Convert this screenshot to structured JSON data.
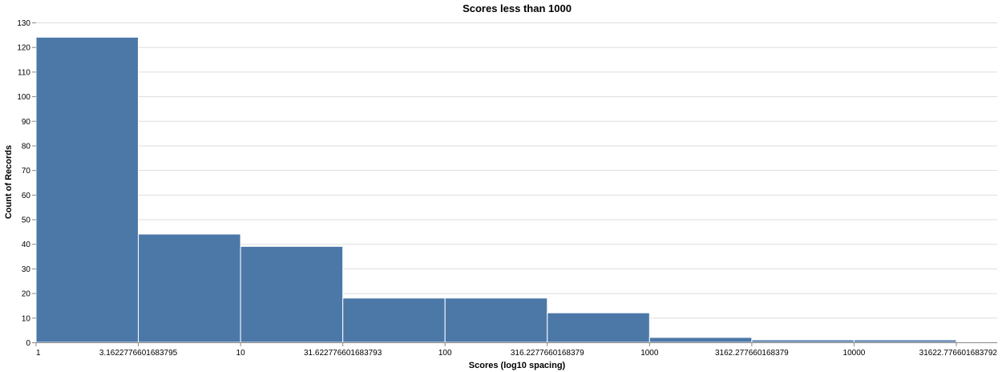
{
  "chart_data": {
    "type": "bar",
    "title": "Scores less than 1000",
    "xlabel": "Scores (log10 spacing)",
    "ylabel": "Count of Records",
    "x_scale": "log10",
    "xlim": [
      1,
      50118.72336272725
    ],
    "ylim": [
      0,
      130
    ],
    "y_ticks": [
      0,
      10,
      20,
      30,
      40,
      50,
      60,
      70,
      80,
      90,
      100,
      110,
      120,
      130
    ],
    "x_ticks": [
      {
        "value": 1,
        "label": "1"
      },
      {
        "value": 3.1622776601683795,
        "label": "3.1622776601683795"
      },
      {
        "value": 10,
        "label": "10"
      },
      {
        "value": 31.622776601683793,
        "label": "31.622776601683793"
      },
      {
        "value": 100,
        "label": "100"
      },
      {
        "value": 316.2277660168379,
        "label": "316.2277660168379"
      },
      {
        "value": 1000,
        "label": "1000"
      },
      {
        "value": 3162.277660168379,
        "label": "3162.277660168379"
      },
      {
        "value": 10000,
        "label": "10000"
      },
      {
        "value": 31622.776601683792,
        "label": "31622.776601683792"
      }
    ],
    "bins": [
      {
        "x0": 1,
        "x1": 3.1622776601683795,
        "count": 124
      },
      {
        "x0": 3.1622776601683795,
        "x1": 10,
        "count": 44
      },
      {
        "x0": 10,
        "x1": 31.622776601683793,
        "count": 39
      },
      {
        "x0": 31.622776601683793,
        "x1": 100,
        "count": 18
      },
      {
        "x0": 100,
        "x1": 316.2277660168379,
        "count": 18
      },
      {
        "x0": 316.2277660168379,
        "x1": 1000,
        "count": 12
      },
      {
        "x0": 1000,
        "x1": 3162.277660168379,
        "count": 2
      },
      {
        "x0": 3162.277660168379,
        "x1": 10000,
        "count": 1
      },
      {
        "x0": 10000,
        "x1": 31622.776601683792,
        "count": 1
      }
    ],
    "bar_color": "#4c78a8",
    "grid": true
  }
}
